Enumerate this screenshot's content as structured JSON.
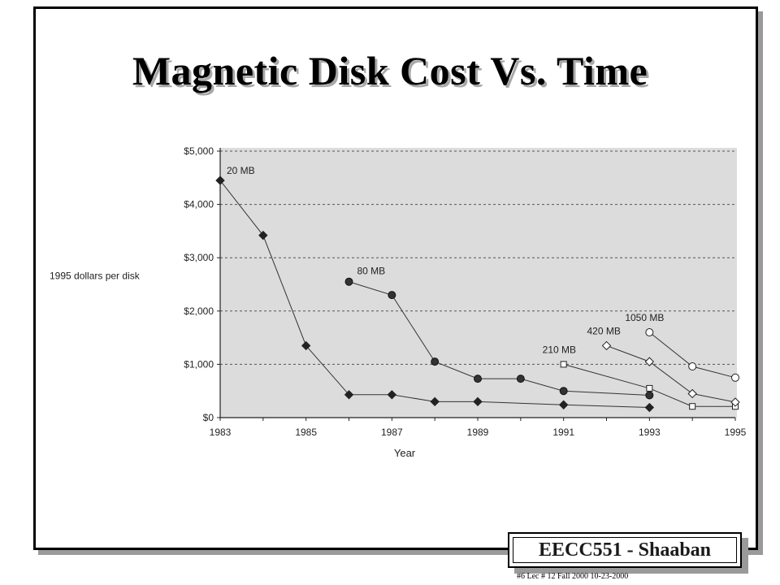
{
  "slide": {
    "title": "Magnetic Disk Cost Vs. Time",
    "badge": "EECC551 - Shaaban",
    "footer": "#6   Lec # 12   Fall 2000  10-23-2000"
  },
  "chart_data": {
    "type": "line",
    "xlabel": "Year",
    "ylabel": "1995 dollars per disk",
    "xlim": [
      1983,
      1995
    ],
    "ylim": [
      0,
      5000
    ],
    "xticks": [
      1983,
      1985,
      1987,
      1989,
      1991,
      1993,
      1995
    ],
    "yticks": [
      {
        "value": 0,
        "label": "$0"
      },
      {
        "value": 1000,
        "label": "$1,000"
      },
      {
        "value": 2000,
        "label": "$2,000"
      },
      {
        "value": 3000,
        "label": "$3,000"
      },
      {
        "value": 4000,
        "label": "$4,000"
      },
      {
        "value": 5000,
        "label": "$5,000"
      }
    ],
    "grid": "horizontal dashed",
    "series": [
      {
        "name": "20 MB",
        "marker": "diamond",
        "points": [
          [
            1983,
            4450
          ],
          [
            1984,
            3420
          ],
          [
            1985,
            1350
          ],
          [
            1986,
            430
          ],
          [
            1987,
            430
          ],
          [
            1988,
            300
          ],
          [
            1989,
            300
          ],
          [
            1991,
            240
          ],
          [
            1993,
            190
          ]
        ]
      },
      {
        "name": "80 MB",
        "marker": "filled-circle",
        "points": [
          [
            1986,
            2550
          ],
          [
            1987,
            2300
          ],
          [
            1988,
            1050
          ],
          [
            1989,
            730
          ],
          [
            1990,
            730
          ],
          [
            1991,
            500
          ],
          [
            1993,
            420
          ]
        ]
      },
      {
        "name": "210 MB",
        "marker": "open-square",
        "points": [
          [
            1991,
            1000
          ],
          [
            1993,
            550
          ],
          [
            1994,
            210
          ],
          [
            1995,
            210
          ]
        ]
      },
      {
        "name": "420 MB",
        "marker": "open-diamond",
        "points": [
          [
            1992,
            1350
          ],
          [
            1993,
            1050
          ],
          [
            1994,
            450
          ],
          [
            1995,
            290
          ]
        ]
      },
      {
        "name": "1050 MB",
        "marker": "open-circle",
        "points": [
          [
            1993,
            1600
          ],
          [
            1994,
            960
          ],
          [
            1995,
            750
          ]
        ]
      }
    ]
  }
}
